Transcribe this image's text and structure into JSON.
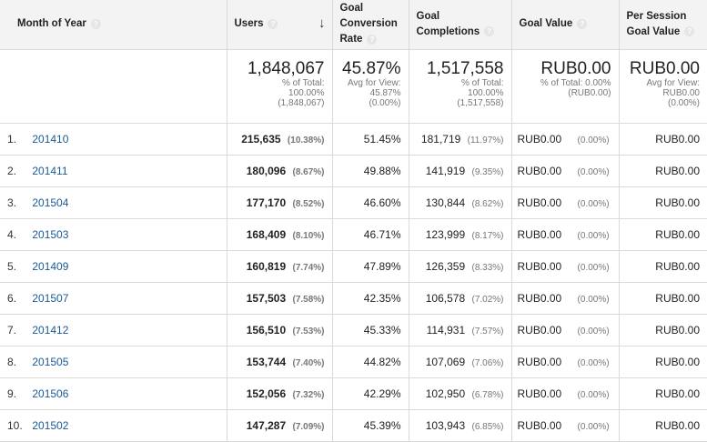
{
  "headers": {
    "month": "Month of Year",
    "users": "Users",
    "conversion_rate_line1": "Goal",
    "conversion_rate_line2": "Conversion",
    "conversion_rate_line3": "Rate",
    "completions_line1": "Goal",
    "completions_line2": "Completions",
    "goal_value": "Goal Value",
    "per_session_line1": "Per Session",
    "per_session_line2": "Goal Value",
    "help_glyph": "?",
    "sort_glyph": "↓"
  },
  "totals": {
    "users": {
      "value": "1,848,067",
      "l1": "% of Total:",
      "l2": "100.00%",
      "l3": "(1,848,067)"
    },
    "conversion_rate": {
      "value": "45.87%",
      "l1": "Avg for View:",
      "l2": "45.87%",
      "l3": "(0.00%)"
    },
    "completions": {
      "value": "1,517,558",
      "l1": "% of Total:",
      "l2": "100.00%",
      "l3": "(1,517,558)"
    },
    "goal_value": {
      "value": "RUB0.00",
      "l1": "% of Total: 0.00%",
      "l2": "(RUB0.00)"
    },
    "per_session": {
      "value": "RUB0.00",
      "l1": "Avg for View:",
      "l2": "RUB0.00",
      "l3": "(0.00%)"
    }
  },
  "rows": [
    {
      "idx": "1.",
      "month": "201410",
      "users": "215,635",
      "users_pct": "(10.38%)",
      "rate": "51.45%",
      "completions": "181,719",
      "completions_pct": "(11.97%)",
      "goal_value": "RUB0.00",
      "goal_value_pct": "(0.00%)",
      "per_session": "RUB0.00"
    },
    {
      "idx": "2.",
      "month": "201411",
      "users": "180,096",
      "users_pct": "(8.67%)",
      "rate": "49.88%",
      "completions": "141,919",
      "completions_pct": "(9.35%)",
      "goal_value": "RUB0.00",
      "goal_value_pct": "(0.00%)",
      "per_session": "RUB0.00"
    },
    {
      "idx": "3.",
      "month": "201504",
      "users": "177,170",
      "users_pct": "(8.52%)",
      "rate": "46.60%",
      "completions": "130,844",
      "completions_pct": "(8.62%)",
      "goal_value": "RUB0.00",
      "goal_value_pct": "(0.00%)",
      "per_session": "RUB0.00"
    },
    {
      "idx": "4.",
      "month": "201503",
      "users": "168,409",
      "users_pct": "(8.10%)",
      "rate": "46.71%",
      "completions": "123,999",
      "completions_pct": "(8.17%)",
      "goal_value": "RUB0.00",
      "goal_value_pct": "(0.00%)",
      "per_session": "RUB0.00"
    },
    {
      "idx": "5.",
      "month": "201409",
      "users": "160,819",
      "users_pct": "(7.74%)",
      "rate": "47.89%",
      "completions": "126,359",
      "completions_pct": "(8.33%)",
      "goal_value": "RUB0.00",
      "goal_value_pct": "(0.00%)",
      "per_session": "RUB0.00"
    },
    {
      "idx": "6.",
      "month": "201507",
      "users": "157,503",
      "users_pct": "(7.58%)",
      "rate": "42.35%",
      "completions": "106,578",
      "completions_pct": "(7.02%)",
      "goal_value": "RUB0.00",
      "goal_value_pct": "(0.00%)",
      "per_session": "RUB0.00"
    },
    {
      "idx": "7.",
      "month": "201412",
      "users": "156,510",
      "users_pct": "(7.53%)",
      "rate": "45.33%",
      "completions": "114,931",
      "completions_pct": "(7.57%)",
      "goal_value": "RUB0.00",
      "goal_value_pct": "(0.00%)",
      "per_session": "RUB0.00"
    },
    {
      "idx": "8.",
      "month": "201505",
      "users": "153,744",
      "users_pct": "(7.40%)",
      "rate": "44.82%",
      "completions": "107,069",
      "completions_pct": "(7.06%)",
      "goal_value": "RUB0.00",
      "goal_value_pct": "(0.00%)",
      "per_session": "RUB0.00"
    },
    {
      "idx": "9.",
      "month": "201506",
      "users": "152,056",
      "users_pct": "(7.32%)",
      "rate": "42.29%",
      "completions": "102,950",
      "completions_pct": "(6.78%)",
      "goal_value": "RUB0.00",
      "goal_value_pct": "(0.00%)",
      "per_session": "RUB0.00"
    },
    {
      "idx": "10.",
      "month": "201502",
      "users": "147,287",
      "users_pct": "(7.09%)",
      "rate": "45.39%",
      "completions": "103,943",
      "completions_pct": "(6.85%)",
      "goal_value": "RUB0.00",
      "goal_value_pct": "(0.00%)",
      "per_session": "RUB0.00"
    }
  ]
}
